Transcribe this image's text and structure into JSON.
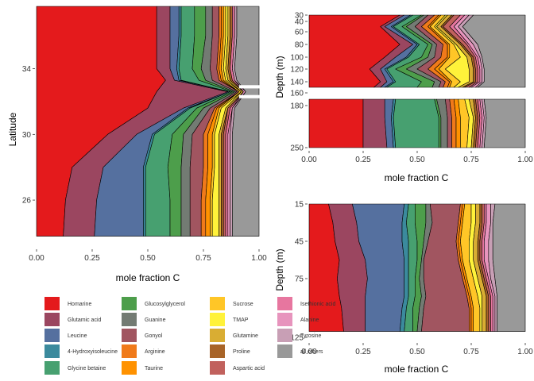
{
  "legend": {
    "items": [
      {
        "label": "Homarine",
        "color": "#e41a1c"
      },
      {
        "label": "Glutamic acid",
        "color": "#9b4660"
      },
      {
        "label": "Leucine",
        "color": "#55709f"
      },
      {
        "label": "4-Hydroxyisoleucine",
        "color": "#3b8a9d"
      },
      {
        "label": "Glycine betaine",
        "color": "#47a070"
      },
      {
        "label": "Glucosylglycerol",
        "color": "#4d9e4b"
      },
      {
        "label": "Guanine",
        "color": "#737b73"
      },
      {
        "label": "Gonyol",
        "color": "#a15560"
      },
      {
        "label": "Arginine",
        "color": "#f07a1a"
      },
      {
        "label": "Taurine",
        "color": "#ff9200"
      },
      {
        "label": "Sucrose",
        "color": "#ffc627"
      },
      {
        "label": "TMAP",
        "color": "#fff23a"
      },
      {
        "label": "Glutamine",
        "color": "#d9ad33"
      },
      {
        "label": "Proline",
        "color": "#a86428"
      },
      {
        "label": "Aspartic acid",
        "color": "#c1615d"
      },
      {
        "label": "Isethionic acid",
        "color": "#e7769f"
      },
      {
        "label": "Alanine",
        "color": "#e794bd"
      },
      {
        "label": "Tyrosine",
        "color": "#c89fb5"
      },
      {
        "label": "all others",
        "color": "#999999"
      }
    ]
  },
  "chart_data": [
    {
      "type": "area",
      "orientation": "horizontal-stacked",
      "xlabel": "mole fraction C",
      "ylabel": "Latitude",
      "xlim": [
        0,
        1
      ],
      "ylim": [
        23.2,
        37.8
      ],
      "x_ticks": [
        "0.00",
        "0.25",
        "0.50",
        "0.75",
        "1.00"
      ],
      "y_ticks": [
        "26",
        "30",
        "34"
      ],
      "y_tick_values": [
        26,
        30,
        34
      ],
      "y": [
        23.8,
        26,
        28,
        30,
        31.6,
        32.6,
        33.3,
        34,
        36,
        37.8
      ],
      "gaps": [
        [
          32.2,
          32.4
        ],
        [
          32.8,
          33.0
        ]
      ],
      "boundaries": [
        [
          0.12,
          0.13,
          0.16,
          0.32,
          0.5,
          0.54,
          0.58,
          0.54,
          0.54,
          0.54
        ],
        [
          0.26,
          0.27,
          0.3,
          0.45,
          0.66,
          0.86,
          0.62,
          0.6,
          0.6,
          0.6
        ],
        [
          0.48,
          0.48,
          0.48,
          0.52,
          0.68,
          0.87,
          0.64,
          0.63,
          0.64,
          0.64
        ],
        [
          0.49,
          0.49,
          0.49,
          0.53,
          0.69,
          0.87,
          0.65,
          0.64,
          0.65,
          0.65
        ],
        [
          0.6,
          0.6,
          0.59,
          0.61,
          0.72,
          0.88,
          0.73,
          0.7,
          0.71,
          0.71
        ],
        [
          0.65,
          0.65,
          0.65,
          0.66,
          0.75,
          0.89,
          0.76,
          0.74,
          0.76,
          0.76
        ],
        [
          0.69,
          0.69,
          0.69,
          0.7,
          0.78,
          0.9,
          0.79,
          0.78,
          0.79,
          0.79
        ],
        [
          0.74,
          0.74,
          0.75,
          0.75,
          0.8,
          0.91,
          0.82,
          0.81,
          0.82,
          0.82
        ],
        [
          0.76,
          0.76,
          0.77,
          0.77,
          0.81,
          0.91,
          0.83,
          0.82,
          0.83,
          0.83
        ],
        [
          0.78,
          0.78,
          0.79,
          0.79,
          0.82,
          0.91,
          0.84,
          0.83,
          0.84,
          0.84
        ],
        [
          0.79,
          0.79,
          0.8,
          0.8,
          0.83,
          0.92,
          0.85,
          0.84,
          0.85,
          0.85
        ],
        [
          0.82,
          0.82,
          0.82,
          0.82,
          0.85,
          0.92,
          0.86,
          0.85,
          0.86,
          0.86
        ],
        [
          0.83,
          0.83,
          0.83,
          0.83,
          0.86,
          0.93,
          0.87,
          0.86,
          0.87,
          0.87
        ],
        [
          0.84,
          0.84,
          0.84,
          0.84,
          0.86,
          0.93,
          0.88,
          0.87,
          0.88,
          0.88
        ],
        [
          0.85,
          0.85,
          0.85,
          0.85,
          0.87,
          0.93,
          0.88,
          0.87,
          0.88,
          0.88
        ],
        [
          0.86,
          0.86,
          0.86,
          0.86,
          0.88,
          0.93,
          0.89,
          0.88,
          0.89,
          0.89
        ],
        [
          0.87,
          0.87,
          0.87,
          0.87,
          0.88,
          0.94,
          0.89,
          0.88,
          0.89,
          0.89
        ],
        [
          0.88,
          0.88,
          0.88,
          0.88,
          0.89,
          0.94,
          0.9,
          0.89,
          0.9,
          0.9
        ]
      ]
    },
    {
      "type": "area",
      "orientation": "horizontal-stacked",
      "xlabel": "mole fraction C",
      "ylabel": "Depth (m)",
      "xlim": [
        0,
        1
      ],
      "ylim": [
        25,
        265
      ],
      "y_reversed": true,
      "y_scale": "piecewise",
      "y_ticks": [
        "30",
        "40",
        "60",
        "80",
        "100",
        "120",
        "140",
        "160",
        "180",
        "250"
      ],
      "y_tick_values": [
        30,
        40,
        60,
        80,
        100,
        120,
        140,
        160,
        180,
        250
      ],
      "x_ticks": [
        "0.00",
        "0.25",
        "0.50",
        "0.75",
        "1.00"
      ],
      "segments": [
        {
          "y": [
            30,
            50,
            80,
            100,
            120,
            140,
            150
          ],
          "boundaries": [
            [
              0.42,
              0.33,
              0.42,
              0.35,
              0.28,
              0.33,
              0.3
            ],
            [
              0.44,
              0.35,
              0.48,
              0.4,
              0.33,
              0.36,
              0.33
            ],
            [
              0.47,
              0.38,
              0.5,
              0.45,
              0.35,
              0.39,
              0.35
            ],
            [
              0.48,
              0.39,
              0.51,
              0.46,
              0.36,
              0.4,
              0.36
            ],
            [
              0.52,
              0.43,
              0.55,
              0.52,
              0.4,
              0.52,
              0.5
            ],
            [
              0.53,
              0.45,
              0.57,
              0.55,
              0.45,
              0.58,
              0.57
            ],
            [
              0.55,
              0.49,
              0.59,
              0.58,
              0.5,
              0.61,
              0.6
            ],
            [
              0.58,
              0.52,
              0.62,
              0.61,
              0.55,
              0.63,
              0.62
            ],
            [
              0.6,
              0.55,
              0.64,
              0.64,
              0.58,
              0.65,
              0.64
            ],
            [
              0.61,
              0.56,
              0.65,
              0.65,
              0.6,
              0.66,
              0.65
            ],
            [
              0.63,
              0.58,
              0.67,
              0.7,
              0.63,
              0.7,
              0.67
            ],
            [
              0.64,
              0.59,
              0.68,
              0.73,
              0.74,
              0.74,
              0.69
            ],
            [
              0.66,
              0.61,
              0.7,
              0.75,
              0.76,
              0.76,
              0.71
            ],
            [
              0.67,
              0.62,
              0.71,
              0.76,
              0.77,
              0.77,
              0.72
            ],
            [
              0.7,
              0.65,
              0.73,
              0.77,
              0.78,
              0.78,
              0.74
            ],
            [
              0.72,
              0.67,
              0.74,
              0.78,
              0.79,
              0.79,
              0.75
            ],
            [
              0.74,
              0.69,
              0.76,
              0.79,
              0.8,
              0.8,
              0.77
            ],
            [
              0.76,
              0.71,
              0.78,
              0.8,
              0.81,
              0.81,
              0.78
            ]
          ]
        },
        {
          "y": [
            170,
            200,
            250
          ],
          "boundaries": [
            [
              0.25,
              0.25,
              0.25
            ],
            [
              0.35,
              0.35,
              0.36
            ],
            [
              0.39,
              0.38,
              0.39
            ],
            [
              0.4,
              0.39,
              0.4
            ],
            [
              0.58,
              0.6,
              0.6
            ],
            [
              0.59,
              0.61,
              0.61
            ],
            [
              0.63,
              0.64,
              0.64
            ],
            [
              0.65,
              0.66,
              0.66
            ],
            [
              0.67,
              0.68,
              0.68
            ],
            [
              0.69,
              0.7,
              0.7
            ],
            [
              0.72,
              0.74,
              0.73
            ],
            [
              0.74,
              0.76,
              0.75
            ],
            [
              0.76,
              0.77,
              0.76
            ],
            [
              0.77,
              0.78,
              0.77
            ],
            [
              0.78,
              0.79,
              0.78
            ],
            [
              0.79,
              0.8,
              0.79
            ],
            [
              0.8,
              0.81,
              0.8
            ],
            [
              0.81,
              0.82,
              0.81
            ]
          ]
        }
      ]
    },
    {
      "type": "area",
      "orientation": "horizontal-stacked",
      "xlabel": "mole fraction C",
      "ylabel": "Depth (m)",
      "xlim": [
        0,
        1
      ],
      "ylim": [
        15,
        125
      ],
      "y_reversed": true,
      "y_ticks": [
        "15",
        "45",
        "75",
        "125"
      ],
      "y_tick_values": [
        15,
        45,
        75,
        125
      ],
      "x_ticks": [
        "0.00",
        "0.25",
        "0.50",
        "0.75",
        "1.00"
      ],
      "y": [
        15,
        30,
        45,
        60,
        75,
        90,
        100,
        120
      ],
      "boundaries": [
        [
          0.09,
          0.11,
          0.12,
          0.14,
          0.13,
          0.14,
          0.15,
          0.16
        ],
        [
          0.2,
          0.22,
          0.23,
          0.26,
          0.27,
          0.26,
          0.26,
          0.26
        ],
        [
          0.44,
          0.43,
          0.43,
          0.44,
          0.44,
          0.44,
          0.43,
          0.42
        ],
        [
          0.46,
          0.45,
          0.46,
          0.46,
          0.46,
          0.46,
          0.45,
          0.44
        ],
        [
          0.49,
          0.49,
          0.5,
          0.5,
          0.49,
          0.49,
          0.48,
          0.48
        ],
        [
          0.54,
          0.54,
          0.53,
          0.52,
          0.51,
          0.52,
          0.51,
          0.5
        ],
        [
          0.56,
          0.57,
          0.55,
          0.53,
          0.53,
          0.54,
          0.53,
          0.52
        ],
        [
          0.7,
          0.69,
          0.68,
          0.69,
          0.71,
          0.73,
          0.74,
          0.74
        ],
        [
          0.71,
          0.7,
          0.69,
          0.7,
          0.72,
          0.74,
          0.75,
          0.75
        ],
        [
          0.72,
          0.71,
          0.7,
          0.71,
          0.73,
          0.75,
          0.76,
          0.76
        ],
        [
          0.75,
          0.75,
          0.74,
          0.74,
          0.76,
          0.78,
          0.79,
          0.79
        ],
        [
          0.77,
          0.77,
          0.76,
          0.76,
          0.78,
          0.8,
          0.8,
          0.8
        ],
        [
          0.79,
          0.79,
          0.78,
          0.78,
          0.8,
          0.82,
          0.82,
          0.82
        ],
        [
          0.8,
          0.8,
          0.79,
          0.79,
          0.81,
          0.83,
          0.83,
          0.83
        ],
        [
          0.81,
          0.81,
          0.8,
          0.8,
          0.82,
          0.84,
          0.84,
          0.84
        ],
        [
          0.82,
          0.82,
          0.81,
          0.81,
          0.83,
          0.85,
          0.85,
          0.85
        ],
        [
          0.84,
          0.84,
          0.83,
          0.83,
          0.84,
          0.86,
          0.86,
          0.86
        ],
        [
          0.86,
          0.85,
          0.85,
          0.85,
          0.86,
          0.87,
          0.87,
          0.87
        ]
      ]
    }
  ]
}
